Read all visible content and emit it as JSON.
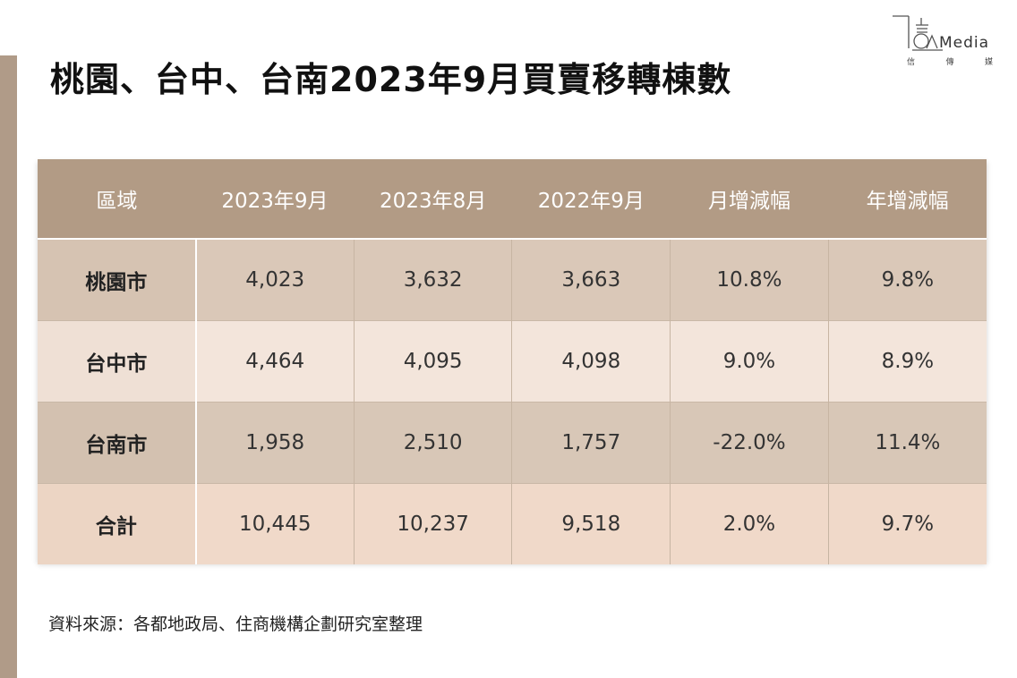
{
  "title": "桃園、台中、台南2023年9月買賣移轉棟數",
  "logo": {
    "word": "Media",
    "sub": [
      "信",
      "傳",
      "媒"
    ]
  },
  "table": {
    "headers": [
      "區域",
      "2023年9月",
      "2023年8月",
      "2022年9月",
      "月增減幅",
      "年增減幅"
    ],
    "rows": [
      [
        "桃園市",
        "4,023",
        "3,632",
        "3,663",
        "10.8%",
        "9.8%"
      ],
      [
        "台中市",
        "4,464",
        "4,095",
        "4,098",
        "9.0%",
        "8.9%"
      ],
      [
        "台南市",
        "1,958",
        "2,510",
        "1,757",
        "-22.0%",
        "11.4%"
      ],
      [
        "合計",
        "10,445",
        "10,237",
        "9,518",
        "2.0%",
        "9.7%"
      ]
    ]
  },
  "source": "資料來源：各都地政局、住商機構企劃研究室整理",
  "colors": {
    "header_bg": "#b29b85",
    "side_bar": "#b09b88"
  }
}
